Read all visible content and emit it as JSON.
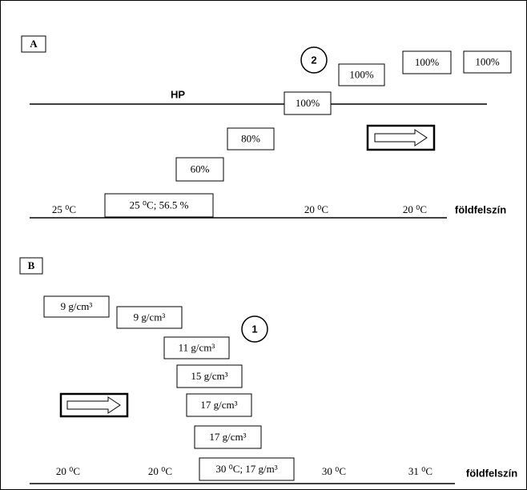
{
  "panels": [
    {
      "label": "A",
      "marker": "2",
      "line_label": "HP",
      "boxes": [
        "100%",
        "100%",
        "100%",
        "100%",
        "80%",
        "60%",
        "25 ⁰C; 56.5 %"
      ],
      "ground_labels": [
        "25 ⁰C",
        "20 ⁰C",
        "20 ⁰C"
      ],
      "surface_label": "földfelszín"
    },
    {
      "label": "B",
      "marker": "1",
      "boxes": [
        "9 g/cm³",
        "9 g/cm³",
        "11 g/cm³",
        "15 g/cm³",
        "17 g/cm³",
        "17 g/cm³",
        "30 ⁰C; 17 g/m³"
      ],
      "ground_labels": [
        "20 ⁰C",
        "20 ⁰C",
        "30 ⁰C",
        "31 ⁰C"
      ],
      "surface_label": "földfelszín"
    }
  ]
}
